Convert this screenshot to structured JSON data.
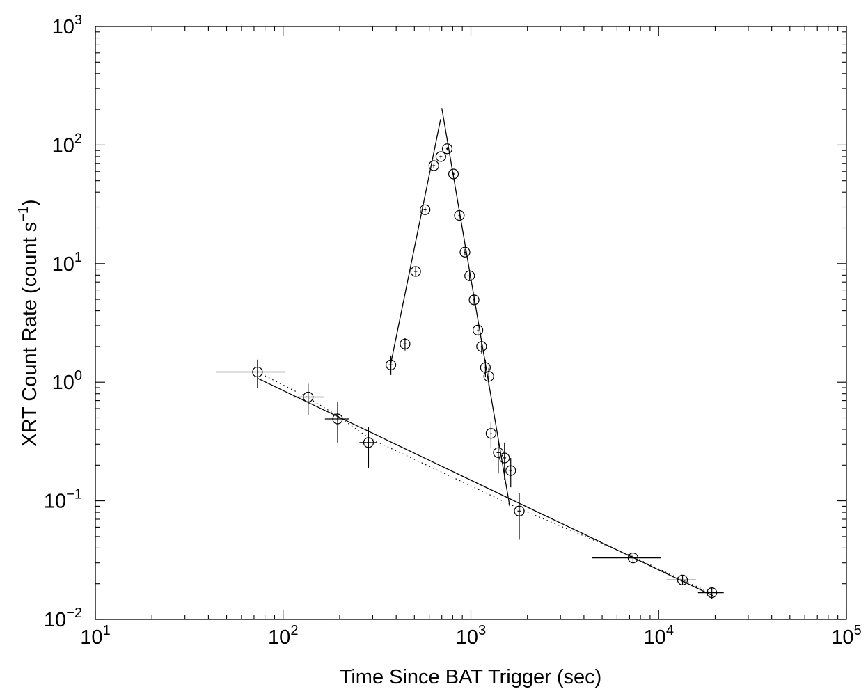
{
  "chart_data": {
    "type": "scatter",
    "xscale": "log",
    "yscale": "log",
    "xlabel": "Time Since BAT Trigger (sec)",
    "ylabel": "XRT Count Rate (count s",
    "ylabel_sup": "−1",
    "ylabel_close": ")",
    "xlim": [
      10,
      100000
    ],
    "ylim": [
      0.01,
      1000
    ],
    "xticks": [
      {
        "value": 10,
        "base": "10",
        "exp": "1"
      },
      {
        "value": 100,
        "base": "10",
        "exp": "2"
      },
      {
        "value": 1000,
        "base": "10",
        "exp": "3"
      },
      {
        "value": 10000,
        "base": "10",
        "exp": "4"
      },
      {
        "value": 100000,
        "base": "10",
        "exp": "5"
      }
    ],
    "yticks": [
      {
        "value": 0.01,
        "base": "10",
        "exp": "−2"
      },
      {
        "value": 0.1,
        "base": "10",
        "exp": "−1"
      },
      {
        "value": 1,
        "base": "10",
        "exp": "0"
      },
      {
        "value": 10,
        "base": "10",
        "exp": "1"
      },
      {
        "value": 100,
        "base": "10",
        "exp": "2"
      },
      {
        "value": 1000,
        "base": "10",
        "exp": "3"
      }
    ],
    "grid": false,
    "legend": "none",
    "points": [
      {
        "x": 73,
        "y": 1.22,
        "xerr": [
          44,
          103
        ],
        "yerr": [
          0.9,
          1.55
        ]
      },
      {
        "x": 136,
        "y": 0.75,
        "xerr": [
          113,
          165
        ],
        "yerr": [
          0.53,
          0.97
        ]
      },
      {
        "x": 195,
        "y": 0.49,
        "xerr": [
          167,
          225
        ],
        "yerr": [
          0.31,
          0.68
        ]
      },
      {
        "x": 285,
        "y": 0.31,
        "xerr": [
          255,
          315
        ],
        "yerr": [
          0.19,
          0.42
        ]
      },
      {
        "x": 375,
        "y": 1.4,
        "xerr": [
          365,
          385
        ],
        "yerr": [
          1.15,
          1.68
        ]
      },
      {
        "x": 446,
        "y": 2.1,
        "xerr": [
          436,
          456
        ],
        "yerr": [
          1.85,
          2.38
        ]
      },
      {
        "x": 508,
        "y": 8.6,
        "xerr": [
          498,
          518
        ],
        "yerr": [
          7.9,
          9.4
        ]
      },
      {
        "x": 570,
        "y": 28.5,
        "xerr": [
          560,
          580
        ],
        "yerr": [
          27,
          30
        ]
      },
      {
        "x": 635,
        "y": 67,
        "xerr": [
          625,
          645
        ],
        "yerr": [
          64,
          70
        ]
      },
      {
        "x": 692,
        "y": 80,
        "xerr": [
          680,
          704
        ],
        "yerr": [
          77,
          83
        ]
      },
      {
        "x": 748,
        "y": 93,
        "xerr": [
          738,
          758
        ],
        "yerr": [
          90,
          96
        ]
      },
      {
        "x": 808,
        "y": 57,
        "xerr": [
          798,
          818
        ],
        "yerr": [
          55,
          59
        ]
      },
      {
        "x": 868,
        "y": 25.5,
        "xerr": [
          858,
          878
        ],
        "yerr": [
          24,
          27
        ]
      },
      {
        "x": 930,
        "y": 12.5,
        "xerr": [
          920,
          940
        ],
        "yerr": [
          11.7,
          13.3
        ]
      },
      {
        "x": 985,
        "y": 7.9,
        "xerr": [
          975,
          995
        ],
        "yerr": [
          7.3,
          8.5
        ]
      },
      {
        "x": 1040,
        "y": 4.95,
        "xerr": [
          1030,
          1050
        ],
        "yerr": [
          4.5,
          5.4
        ]
      },
      {
        "x": 1090,
        "y": 2.75,
        "xerr": [
          1080,
          1100
        ],
        "yerr": [
          2.45,
          3.05
        ]
      },
      {
        "x": 1140,
        "y": 2.0,
        "xerr": [
          1130,
          1150
        ],
        "yerr": [
          1.75,
          2.25
        ]
      },
      {
        "x": 1195,
        "y": 1.33,
        "xerr": [
          1185,
          1205
        ],
        "yerr": [
          1.1,
          1.55
        ]
      },
      {
        "x": 1245,
        "y": 1.12,
        "xerr": [
          1235,
          1255
        ],
        "yerr": [
          0.93,
          1.32
        ]
      },
      {
        "x": 1280,
        "y": 0.37,
        "xerr": [
          1270,
          1290
        ],
        "yerr": [
          0.28,
          0.46
        ]
      },
      {
        "x": 1400,
        "y": 0.255,
        "xerr": [
          1370,
          1430
        ],
        "yerr": [
          0.17,
          0.34
        ]
      },
      {
        "x": 1510,
        "y": 0.23,
        "xerr": [
          1480,
          1540
        ],
        "yerr": [
          0.15,
          0.31
        ]
      },
      {
        "x": 1630,
        "y": 0.18,
        "xerr": [
          1600,
          1660
        ],
        "yerr": [
          0.13,
          0.23
        ]
      },
      {
        "x": 1810,
        "y": 0.082,
        "xerr": [
          1770,
          1850
        ],
        "yerr": [
          0.047,
          0.116
        ]
      },
      {
        "x": 7300,
        "y": 0.033,
        "xerr": [
          4400,
          10300
        ],
        "yerr": [
          0.031,
          0.035
        ]
      },
      {
        "x": 13400,
        "y": 0.0215,
        "xerr": [
          11000,
          15800
        ],
        "yerr": [
          0.0195,
          0.0235
        ]
      },
      {
        "x": 19200,
        "y": 0.0168,
        "xerr": [
          16200,
          22200
        ],
        "yerr": [
          0.0148,
          0.0188
        ]
      }
    ],
    "model_lines": [
      {
        "style": "solid",
        "points": [
          [
            73,
            1.08
          ],
          [
            19500,
            0.0158
          ]
        ]
      },
      {
        "style": "solid",
        "points": [
          [
            375,
            1.45
          ],
          [
            690,
            165
          ]
        ]
      },
      {
        "style": "solid",
        "points": [
          [
            700,
            205
          ],
          [
            1610,
            0.09
          ]
        ]
      },
      {
        "style": "dotted",
        "points": [
          [
            73,
            1.22
          ],
          [
            136,
            0.74
          ],
          [
            195,
            0.52
          ],
          [
            285,
            0.34
          ],
          [
            1810,
            0.086
          ],
          [
            7300,
            0.0338
          ],
          [
            13400,
            0.0215
          ],
          [
            19200,
            0.0166
          ]
        ]
      }
    ]
  }
}
